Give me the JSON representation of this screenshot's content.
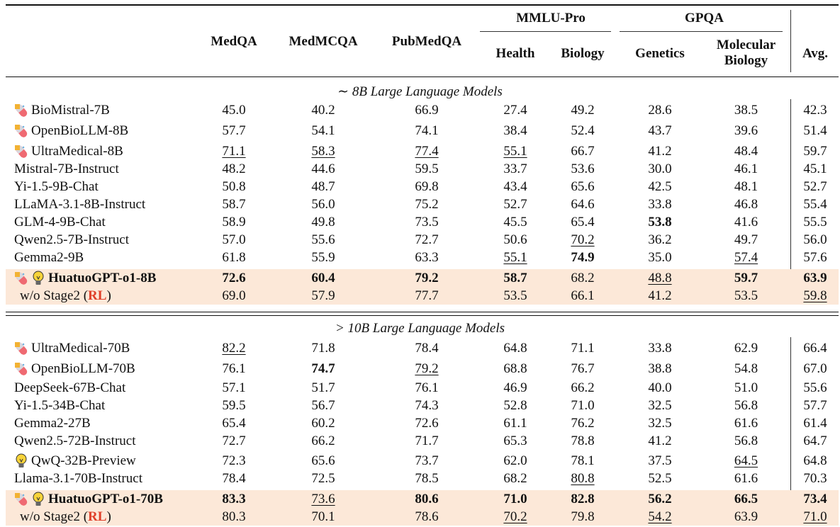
{
  "header": {
    "groups": {
      "mmlu": "MMLU-Pro",
      "gpqa": "GPQA"
    },
    "columns": [
      "MedQA",
      "MedMCQA",
      "PubMedQA",
      "Health",
      "Biology",
      "Genetics",
      "Molecular Biology",
      "Avg."
    ]
  },
  "colors": {
    "highlight": "#fce8d8",
    "rl": "#e0402a"
  },
  "sections": [
    {
      "title": "∼ 8B Large Language Models",
      "rows": [
        {
          "name": "BioMistral-7B",
          "icons": [
            "pill-icon"
          ],
          "scores": [
            "45.0",
            "40.2",
            "66.9",
            "27.4",
            "49.2",
            "28.6",
            "38.5",
            "42.3"
          ],
          "bold": [],
          "underline": []
        },
        {
          "name": "OpenBioLLM-8B",
          "icons": [
            "pill-icon"
          ],
          "scores": [
            "57.7",
            "54.1",
            "74.1",
            "38.4",
            "52.4",
            "43.7",
            "39.6",
            "51.4"
          ],
          "bold": [],
          "underline": []
        },
        {
          "name": "UltraMedical-8B",
          "icons": [
            "pill-icon"
          ],
          "scores": [
            "71.1",
            "58.3",
            "77.4",
            "55.1",
            "66.7",
            "41.2",
            "48.4",
            "59.7"
          ],
          "bold": [],
          "underline": [
            0,
            1,
            2,
            3
          ]
        },
        {
          "name": "Mistral-7B-Instruct",
          "icons": [],
          "scores": [
            "48.2",
            "44.6",
            "59.5",
            "33.7",
            "53.6",
            "30.0",
            "46.1",
            "45.1"
          ],
          "bold": [],
          "underline": []
        },
        {
          "name": "Yi-1.5-9B-Chat",
          "icons": [],
          "scores": [
            "50.8",
            "48.7",
            "69.8",
            "43.4",
            "65.6",
            "42.5",
            "48.1",
            "52.7"
          ],
          "bold": [],
          "underline": []
        },
        {
          "name": "LLaMA-3.1-8B-Instruct",
          "icons": [],
          "scores": [
            "58.7",
            "56.0",
            "75.2",
            "52.7",
            "64.6",
            "33.8",
            "46.8",
            "55.4"
          ],
          "bold": [],
          "underline": []
        },
        {
          "name": "GLM-4-9B-Chat",
          "icons": [],
          "scores": [
            "58.9",
            "49.8",
            "73.5",
            "45.5",
            "65.4",
            "53.8",
            "41.6",
            "55.5"
          ],
          "bold": [
            5
          ],
          "underline": []
        },
        {
          "name": "Qwen2.5-7B-Instruct",
          "icons": [],
          "scores": [
            "57.0",
            "55.6",
            "72.7",
            "50.6",
            "70.2",
            "36.2",
            "49.7",
            "56.0"
          ],
          "bold": [],
          "underline": [
            4
          ]
        },
        {
          "name": "Gemma2-9B",
          "icons": [],
          "scores": [
            "61.8",
            "55.9",
            "63.3",
            "55.1",
            "74.9",
            "35.0",
            "57.4",
            "57.6"
          ],
          "bold": [
            4
          ],
          "underline": [
            3,
            6
          ]
        },
        {
          "name": "HuatuoGPT-o1-8B",
          "icons": [
            "pill-icon",
            "bulb-icon"
          ],
          "highlight": true,
          "nameBold": true,
          "scores": [
            "72.6",
            "60.4",
            "79.2",
            "58.7",
            "68.2",
            "48.8",
            "59.7",
            "63.9"
          ],
          "bold": [
            0,
            1,
            2,
            3,
            6,
            7
          ],
          "underline": [
            5
          ]
        },
        {
          "name": "w/o Stage2 (",
          "nameSuffix": "RL",
          "nameEnd": ")",
          "icons": [],
          "highlight": true,
          "indent": true,
          "scores": [
            "69.0",
            "57.9",
            "77.7",
            "53.5",
            "66.1",
            "41.2",
            "53.5",
            "59.8"
          ],
          "bold": [],
          "underline": [
            7
          ]
        }
      ]
    },
    {
      "title": "> 10B Large Language Models",
      "rows": [
        {
          "name": "UltraMedical-70B",
          "icons": [
            "pill-icon"
          ],
          "scores": [
            "82.2",
            "71.8",
            "78.4",
            "64.8",
            "71.1",
            "33.8",
            "62.9",
            "66.4"
          ],
          "bold": [],
          "underline": [
            0
          ]
        },
        {
          "name": "OpenBioLLM-70B",
          "icons": [
            "pill-icon"
          ],
          "scores": [
            "76.1",
            "74.7",
            "79.2",
            "68.8",
            "76.7",
            "38.8",
            "54.8",
            "67.0"
          ],
          "bold": [
            1
          ],
          "underline": [
            2
          ]
        },
        {
          "name": "DeepSeek-67B-Chat",
          "icons": [],
          "scores": [
            "57.1",
            "51.7",
            "76.1",
            "46.9",
            "66.2",
            "40.0",
            "51.0",
            "55.6"
          ],
          "bold": [],
          "underline": []
        },
        {
          "name": "Yi-1.5-34B-Chat",
          "icons": [],
          "scores": [
            "59.5",
            "56.7",
            "74.3",
            "52.8",
            "71.0",
            "32.5",
            "56.8",
            "57.7"
          ],
          "bold": [],
          "underline": []
        },
        {
          "name": "Gemma2-27B",
          "icons": [],
          "scores": [
            "65.4",
            "60.2",
            "72.6",
            "61.1",
            "76.2",
            "32.5",
            "61.6",
            "61.4"
          ],
          "bold": [],
          "underline": []
        },
        {
          "name": "Qwen2.5-72B-Instruct",
          "icons": [],
          "scores": [
            "72.7",
            "66.2",
            "71.7",
            "65.3",
            "78.8",
            "41.2",
            "56.8",
            "64.7"
          ],
          "bold": [],
          "underline": []
        },
        {
          "name": "QwQ-32B-Preview",
          "icons": [
            "bulb-icon"
          ],
          "scores": [
            "72.3",
            "65.6",
            "73.7",
            "62.0",
            "78.1",
            "37.5",
            "64.5",
            "64.8"
          ],
          "bold": [],
          "underline": [
            6
          ]
        },
        {
          "name": "Llama-3.1-70B-Instruct",
          "icons": [],
          "scores": [
            "78.4",
            "72.5",
            "78.5",
            "68.2",
            "80.8",
            "52.5",
            "61.6",
            "70.3"
          ],
          "bold": [],
          "underline": [
            4
          ]
        },
        {
          "name": "HuatuoGPT-o1-70B",
          "icons": [
            "pill-icon",
            "bulb-icon"
          ],
          "highlight": true,
          "nameBold": true,
          "scores": [
            "83.3",
            "73.6",
            "80.6",
            "71.0",
            "82.8",
            "56.2",
            "66.5",
            "73.4"
          ],
          "bold": [
            0,
            2,
            3,
            4,
            5,
            6,
            7
          ],
          "underline": [
            1
          ]
        },
        {
          "name": "w/o Stage2 (",
          "nameSuffix": "RL",
          "nameEnd": ")",
          "icons": [],
          "highlight": true,
          "indent": true,
          "scores": [
            "80.3",
            "70.1",
            "78.6",
            "70.2",
            "79.8",
            "54.2",
            "63.9",
            "71.0"
          ],
          "bold": [],
          "underline": [
            3,
            5,
            7
          ]
        }
      ]
    }
  ]
}
